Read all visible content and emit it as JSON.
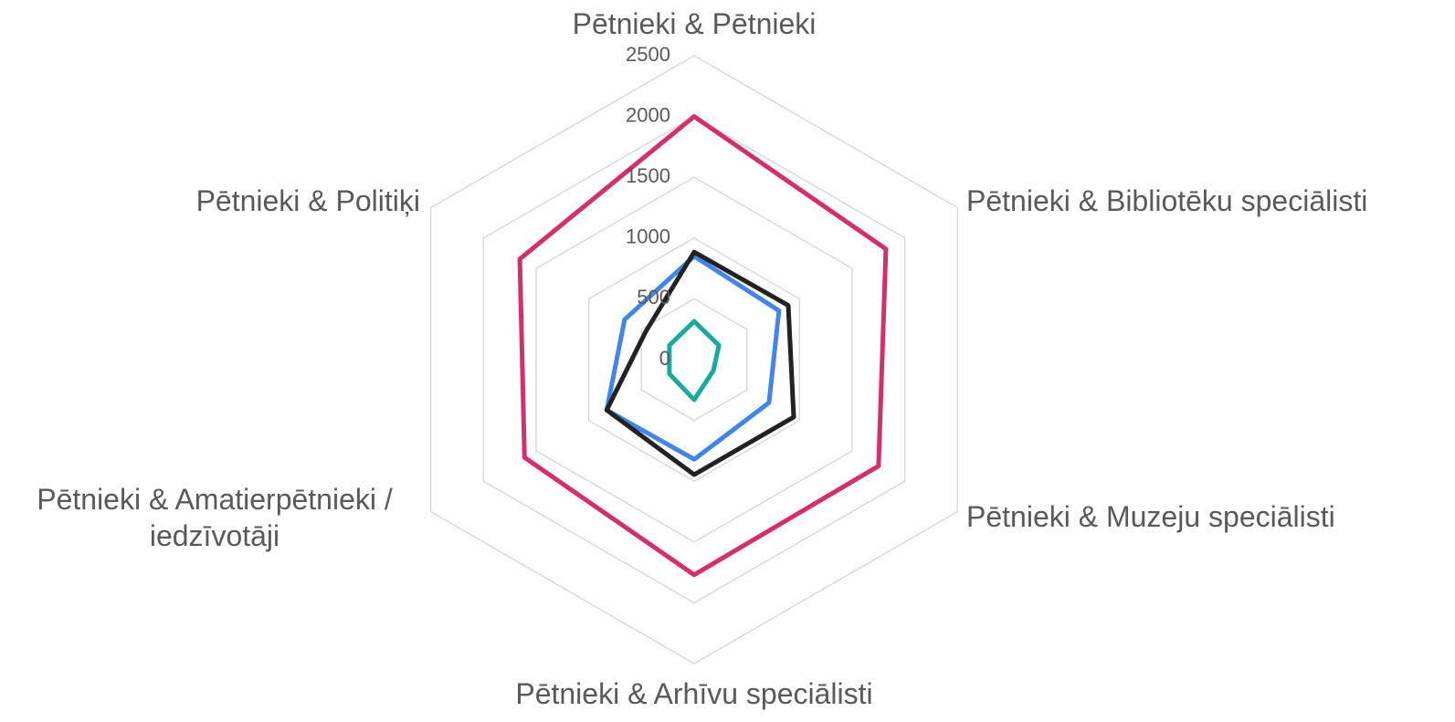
{
  "chart_data": {
    "type": "radar",
    "categories": [
      "Pētnieki & Pētnieki",
      "Pētnieki & Bibliotēku speciālisti",
      "Pētnieki & Muzeju speciālisti",
      "Pētnieki & Arhīvu speciālisti",
      "Pētnieki & Amatierpētnieki / iedzīvotāji",
      "Pētnieki & Politiķi"
    ],
    "series": [
      {
        "color": "#d3306b",
        "values": [
          2000,
          1820,
          1750,
          1770,
          1610,
          1655
        ]
      },
      {
        "color": "#4285e8",
        "values": [
          850,
          805,
          710,
          820,
          830,
          660
        ]
      },
      {
        "color": "#222222",
        "values": [
          885,
          893,
          945,
          946,
          830,
          460
        ]
      },
      {
        "color": "#1aa9a0",
        "values": [
          315,
          235,
          182,
          330,
          235,
          235
        ]
      }
    ],
    "ylim": [
      0,
      2500
    ],
    "yticks": [
      0,
      500,
      1000,
      1500,
      2000,
      2500
    ],
    "grid": true
  }
}
